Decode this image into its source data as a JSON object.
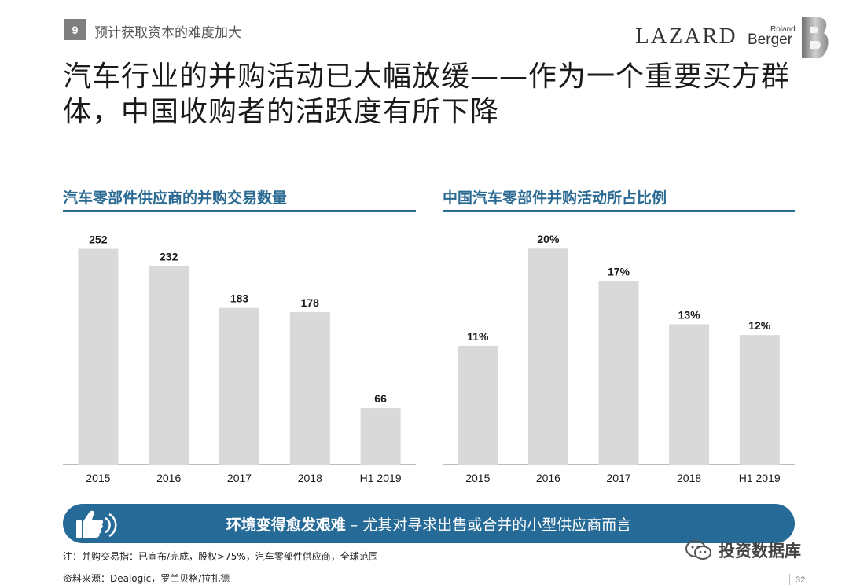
{
  "header": {
    "section_number": "9",
    "section_title": "预计获取资本的难度加大",
    "logo_lazard": "LAZARD",
    "logo_rb_small": "Roland",
    "logo_rb_big": "Berger"
  },
  "title": {
    "line1": "汽车行业的并购活动已大幅放缓——作为一个重要买方群",
    "line2": "体，中国收购者的活跃度有所下降"
  },
  "chart_data": [
    {
      "type": "bar",
      "title": "汽车零部件供应商的并购交易数量",
      "categories": [
        "2015",
        "2016",
        "2017",
        "2018",
        "H1 2019"
      ],
      "values": [
        252,
        232,
        183,
        178,
        66
      ],
      "labels": [
        "252",
        "232",
        "183",
        "178",
        "66"
      ],
      "ylim": [
        0,
        280
      ],
      "xlabel": "",
      "ylabel": "",
      "bar_color": "#d9d9d9"
    },
    {
      "type": "bar",
      "title": "中国汽车零部件并购活动所占比例",
      "categories": [
        "2015",
        "2016",
        "2017",
        "2018",
        "H1 2019"
      ],
      "values": [
        11,
        20,
        17,
        13,
        12
      ],
      "labels": [
        "11%",
        "20%",
        "17%",
        "13%",
        "12%"
      ],
      "ylim": [
        0,
        22.2
      ],
      "xlabel": "",
      "ylabel": "",
      "bar_color": "#d9d9d9"
    }
  ],
  "banner": {
    "bold": "环境变得愈发艰难",
    "rest": "– 尤其对寻求出售或合并的小型供应商而言",
    "icon": "thumbs-up-signal-icon"
  },
  "footer": {
    "note": "注：并购交易指：已宣布/完成，股权>75%，汽车零部件供应商，全球范围",
    "source": "资料来源：Dealogic，罗兰贝格/拉扎德",
    "watermark": "投资数据库",
    "page": "32"
  },
  "colors": {
    "accent": "#2b6a92",
    "banner": "#266a97",
    "bar": "#d9d9d9"
  }
}
